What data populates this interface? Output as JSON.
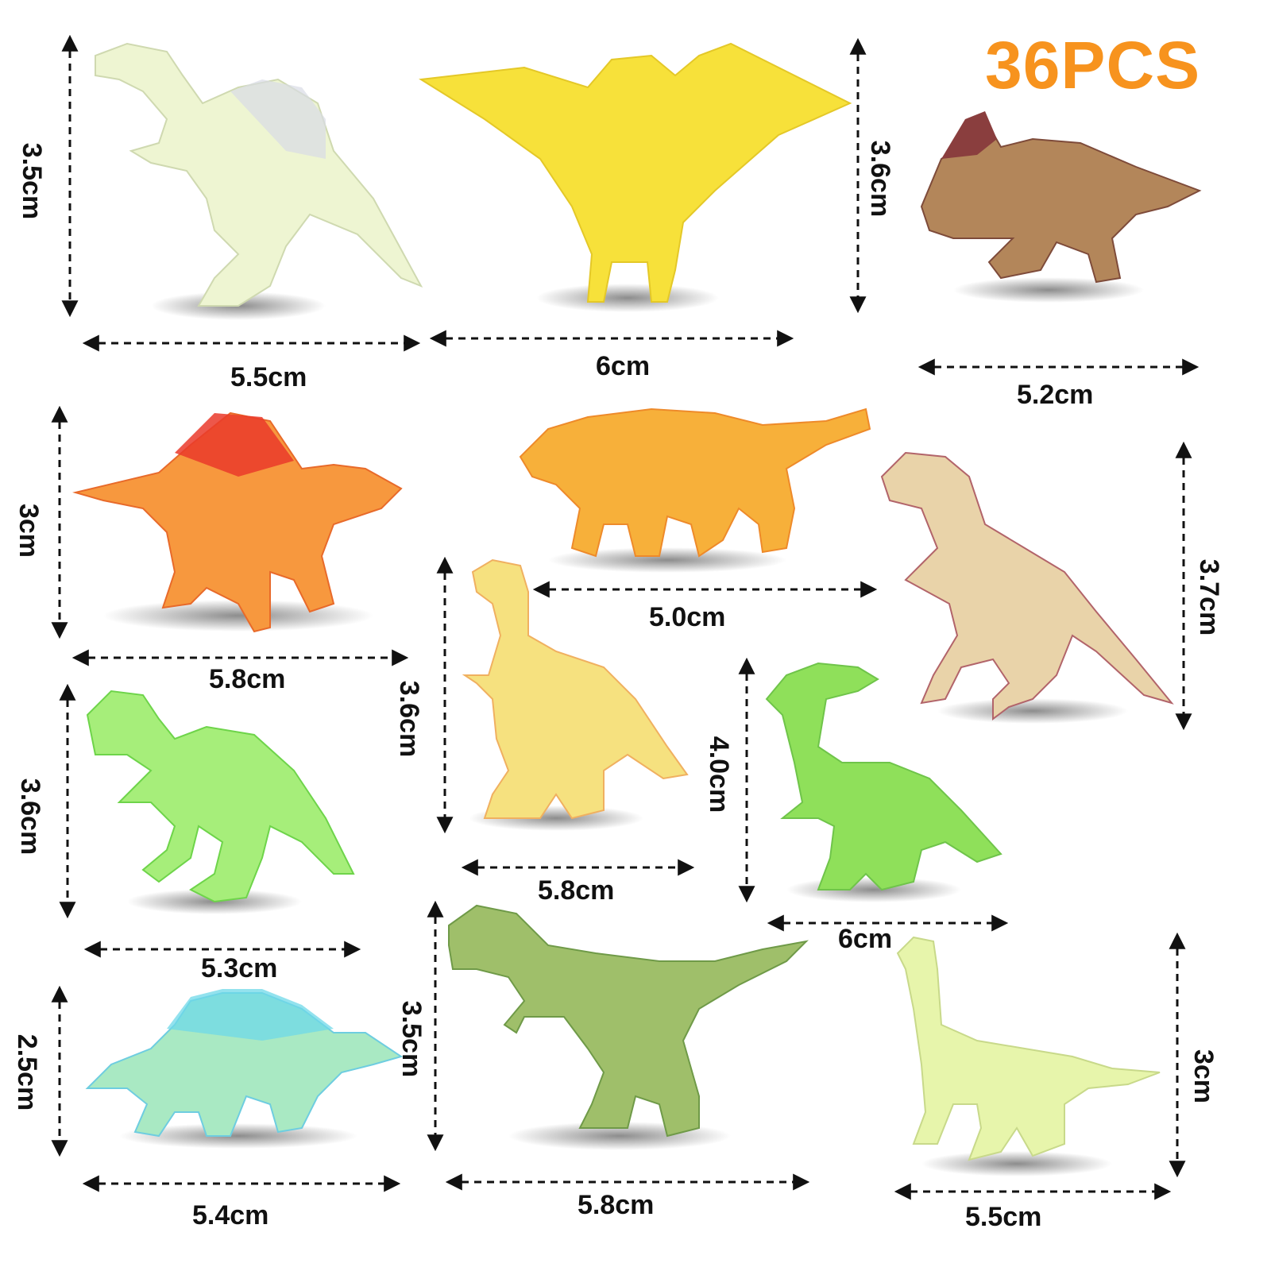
{
  "badge": {
    "text": "36PCS",
    "color": "#f7931e"
  },
  "figures": [
    {
      "name": "spinosaurus-white",
      "color": "#eef5d2",
      "width": "5.5cm",
      "height": "3.5cm"
    },
    {
      "name": "pterodactyl-yellow",
      "color": "#f7e13a",
      "width": "6cm",
      "height": "3.6cm"
    },
    {
      "name": "triceratops-brown",
      "color": "#b3865a",
      "width": "5.2cm"
    },
    {
      "name": "spinosaurus-orange",
      "color": "#f7983e",
      "width": "5.8cm",
      "height": "3cm"
    },
    {
      "name": "ankylosaurus-orange",
      "color": "#f7b03a",
      "width": "5.0cm"
    },
    {
      "name": "carnotaurus-pink",
      "color": "#e9d3a9",
      "height": "3.7cm"
    },
    {
      "name": "therizinosaurus-yellow",
      "color": "#f6e17f",
      "width": "5.8cm",
      "height": "3.6cm"
    },
    {
      "name": "parasaurolophus-green",
      "color": "#8fe05a",
      "width": "6cm",
      "height": "4.0cm"
    },
    {
      "name": "allosaurus-green",
      "color": "#a6ee7a",
      "width": "5.3cm",
      "height": "3.6cm"
    },
    {
      "name": "stegosaurus-teal",
      "color": "#a9e9c3",
      "width": "5.4cm",
      "height": "2.5cm"
    },
    {
      "name": "trex-green",
      "color": "#9fbf6a",
      "width": "5.8cm",
      "height": "3.5cm"
    },
    {
      "name": "brachiosaurus-pale",
      "color": "#e7f5ab",
      "width": "5.5cm",
      "height": "3cm"
    }
  ]
}
